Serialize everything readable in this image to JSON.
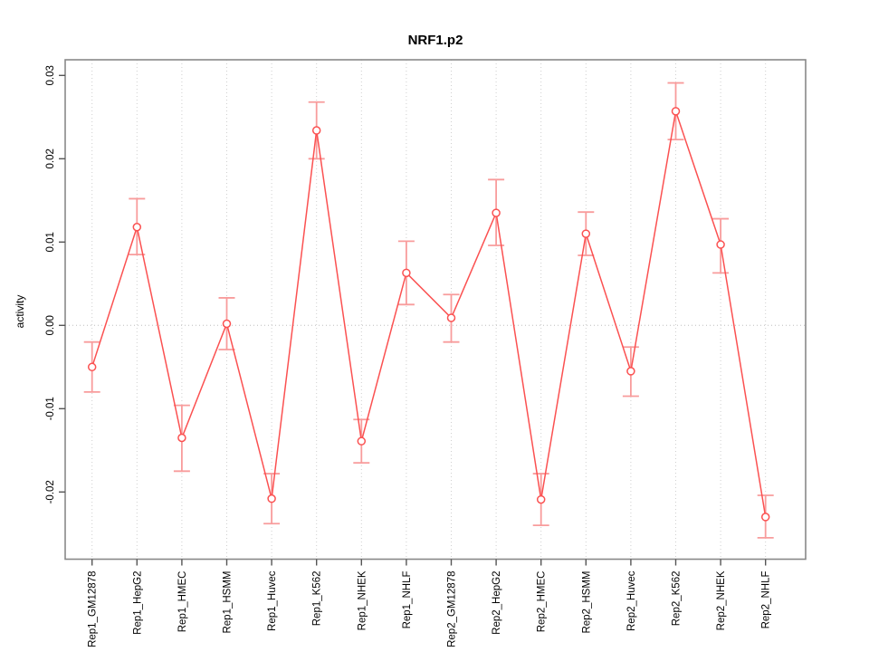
{
  "chart_data": {
    "type": "line",
    "title": "NRF1.p2",
    "xlabel": "",
    "ylabel": "activity",
    "categories": [
      "Rep1_GM12878",
      "Rep1_HepG2",
      "Rep1_HMEC",
      "Rep1_HSMM",
      "Rep1_Huvec",
      "Rep1_K562",
      "Rep1_NHEK",
      "Rep1_NHLF",
      "Rep2_GM12878",
      "Rep2_HepG2",
      "Rep2_HMEC",
      "Rep2_HSMM",
      "Rep2_Huvec",
      "Rep2_K562",
      "Rep2_NHEK",
      "Rep2_NHLF"
    ],
    "series": [
      {
        "name": "activity",
        "values": [
          -0.005,
          0.0118,
          -0.0135,
          0.0002,
          -0.0208,
          0.0234,
          -0.0139,
          0.0063,
          0.0009,
          0.0135,
          -0.0209,
          0.011,
          -0.0055,
          0.0257,
          0.0097,
          -0.023
        ],
        "upper": [
          -0.002,
          0.0152,
          -0.0096,
          0.0033,
          -0.0178,
          0.0268,
          -0.0113,
          0.0101,
          0.0037,
          0.0175,
          -0.0178,
          0.0136,
          -0.0026,
          0.0291,
          0.0128,
          -0.0204
        ],
        "lower": [
          -0.008,
          0.0085,
          -0.0175,
          -0.0029,
          -0.0238,
          0.02,
          -0.0165,
          0.0025,
          -0.002,
          0.0096,
          -0.024,
          0.0084,
          -0.0085,
          0.0223,
          0.0063,
          -0.0255
        ]
      }
    ],
    "yticks": [
      0.03,
      0.02,
      0.01,
      0.0,
      -0.01,
      -0.02
    ],
    "ytick_labels": [
      "0.03",
      "0.02",
      "0.01",
      "0.00",
      "-0.01",
      "-0.02"
    ],
    "ylim": [
      -0.0262,
      0.0312
    ],
    "grid": "dotted vertical at each category, dotted horizontal at zero",
    "legend_position": "none",
    "marker": "open-circle",
    "colors": {
      "line": "#fb5151",
      "marker": "#fb5151",
      "error_bar": "#f89c9c",
      "grid": "#cfcfcf",
      "zero_line": "#bdbdbd",
      "box": "#888888",
      "tick": "#555555",
      "text": "#000000"
    }
  }
}
